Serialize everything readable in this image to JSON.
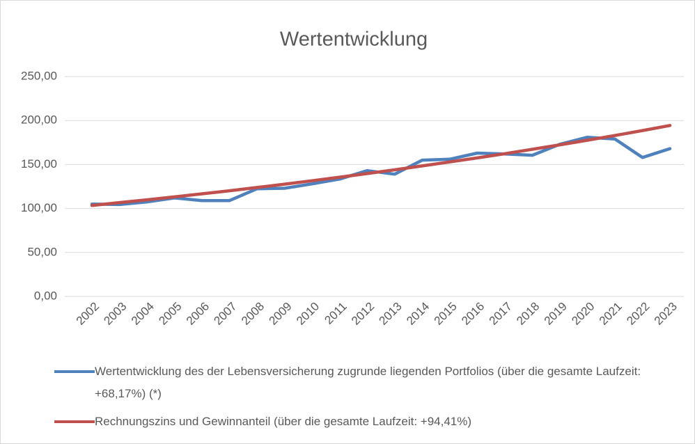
{
  "chart_data": {
    "type": "line",
    "title": "Wertentwicklung",
    "categories": [
      "2002",
      "2003",
      "2004",
      "2005",
      "2006",
      "2007",
      "2008",
      "2009",
      "2010",
      "2011",
      "2012",
      "2013",
      "2014",
      "2015",
      "2016",
      "2017",
      "2018",
      "2019",
      "2020",
      "2021",
      "2022",
      "2023"
    ],
    "series": [
      {
        "name": "Wertentwicklung des der Lebensversicherung zugrunde liegenden Portfolios (über die gesamte Laufzeit: +68,17%) (*)",
        "color": "#4f81bd",
        "values": [
          105,
          104.5,
          107.5,
          112,
          109,
          109,
          122.5,
          123,
          128,
          133.5,
          143,
          139,
          155,
          156,
          163,
          162,
          160.5,
          173,
          181,
          179,
          158,
          168
        ]
      },
      {
        "name": "Rechnungszins und Gewinnanteil (über die gesamte Laufzeit: +94,41%)",
        "color": "#c0504d",
        "values": [
          103.5,
          106.7,
          109.9,
          113.2,
          116.7,
          120.2,
          123.9,
          127.7,
          131.6,
          135.6,
          139.7,
          144.0,
          148.4,
          152.9,
          157.5,
          162.3,
          167.3,
          172.4,
          177.6,
          183.0,
          188.6,
          194.4
        ]
      }
    ],
    "ylim": [
      0,
      250
    ],
    "yticks": [
      {
        "value": 0,
        "label": "0,00"
      },
      {
        "value": 50,
        "label": "50,00"
      },
      {
        "value": 100,
        "label": "100,00"
      },
      {
        "value": 150,
        "label": "150,00"
      },
      {
        "value": 200,
        "label": "200,00"
      },
      {
        "value": 250,
        "label": "250,00"
      }
    ],
    "grid": true
  }
}
